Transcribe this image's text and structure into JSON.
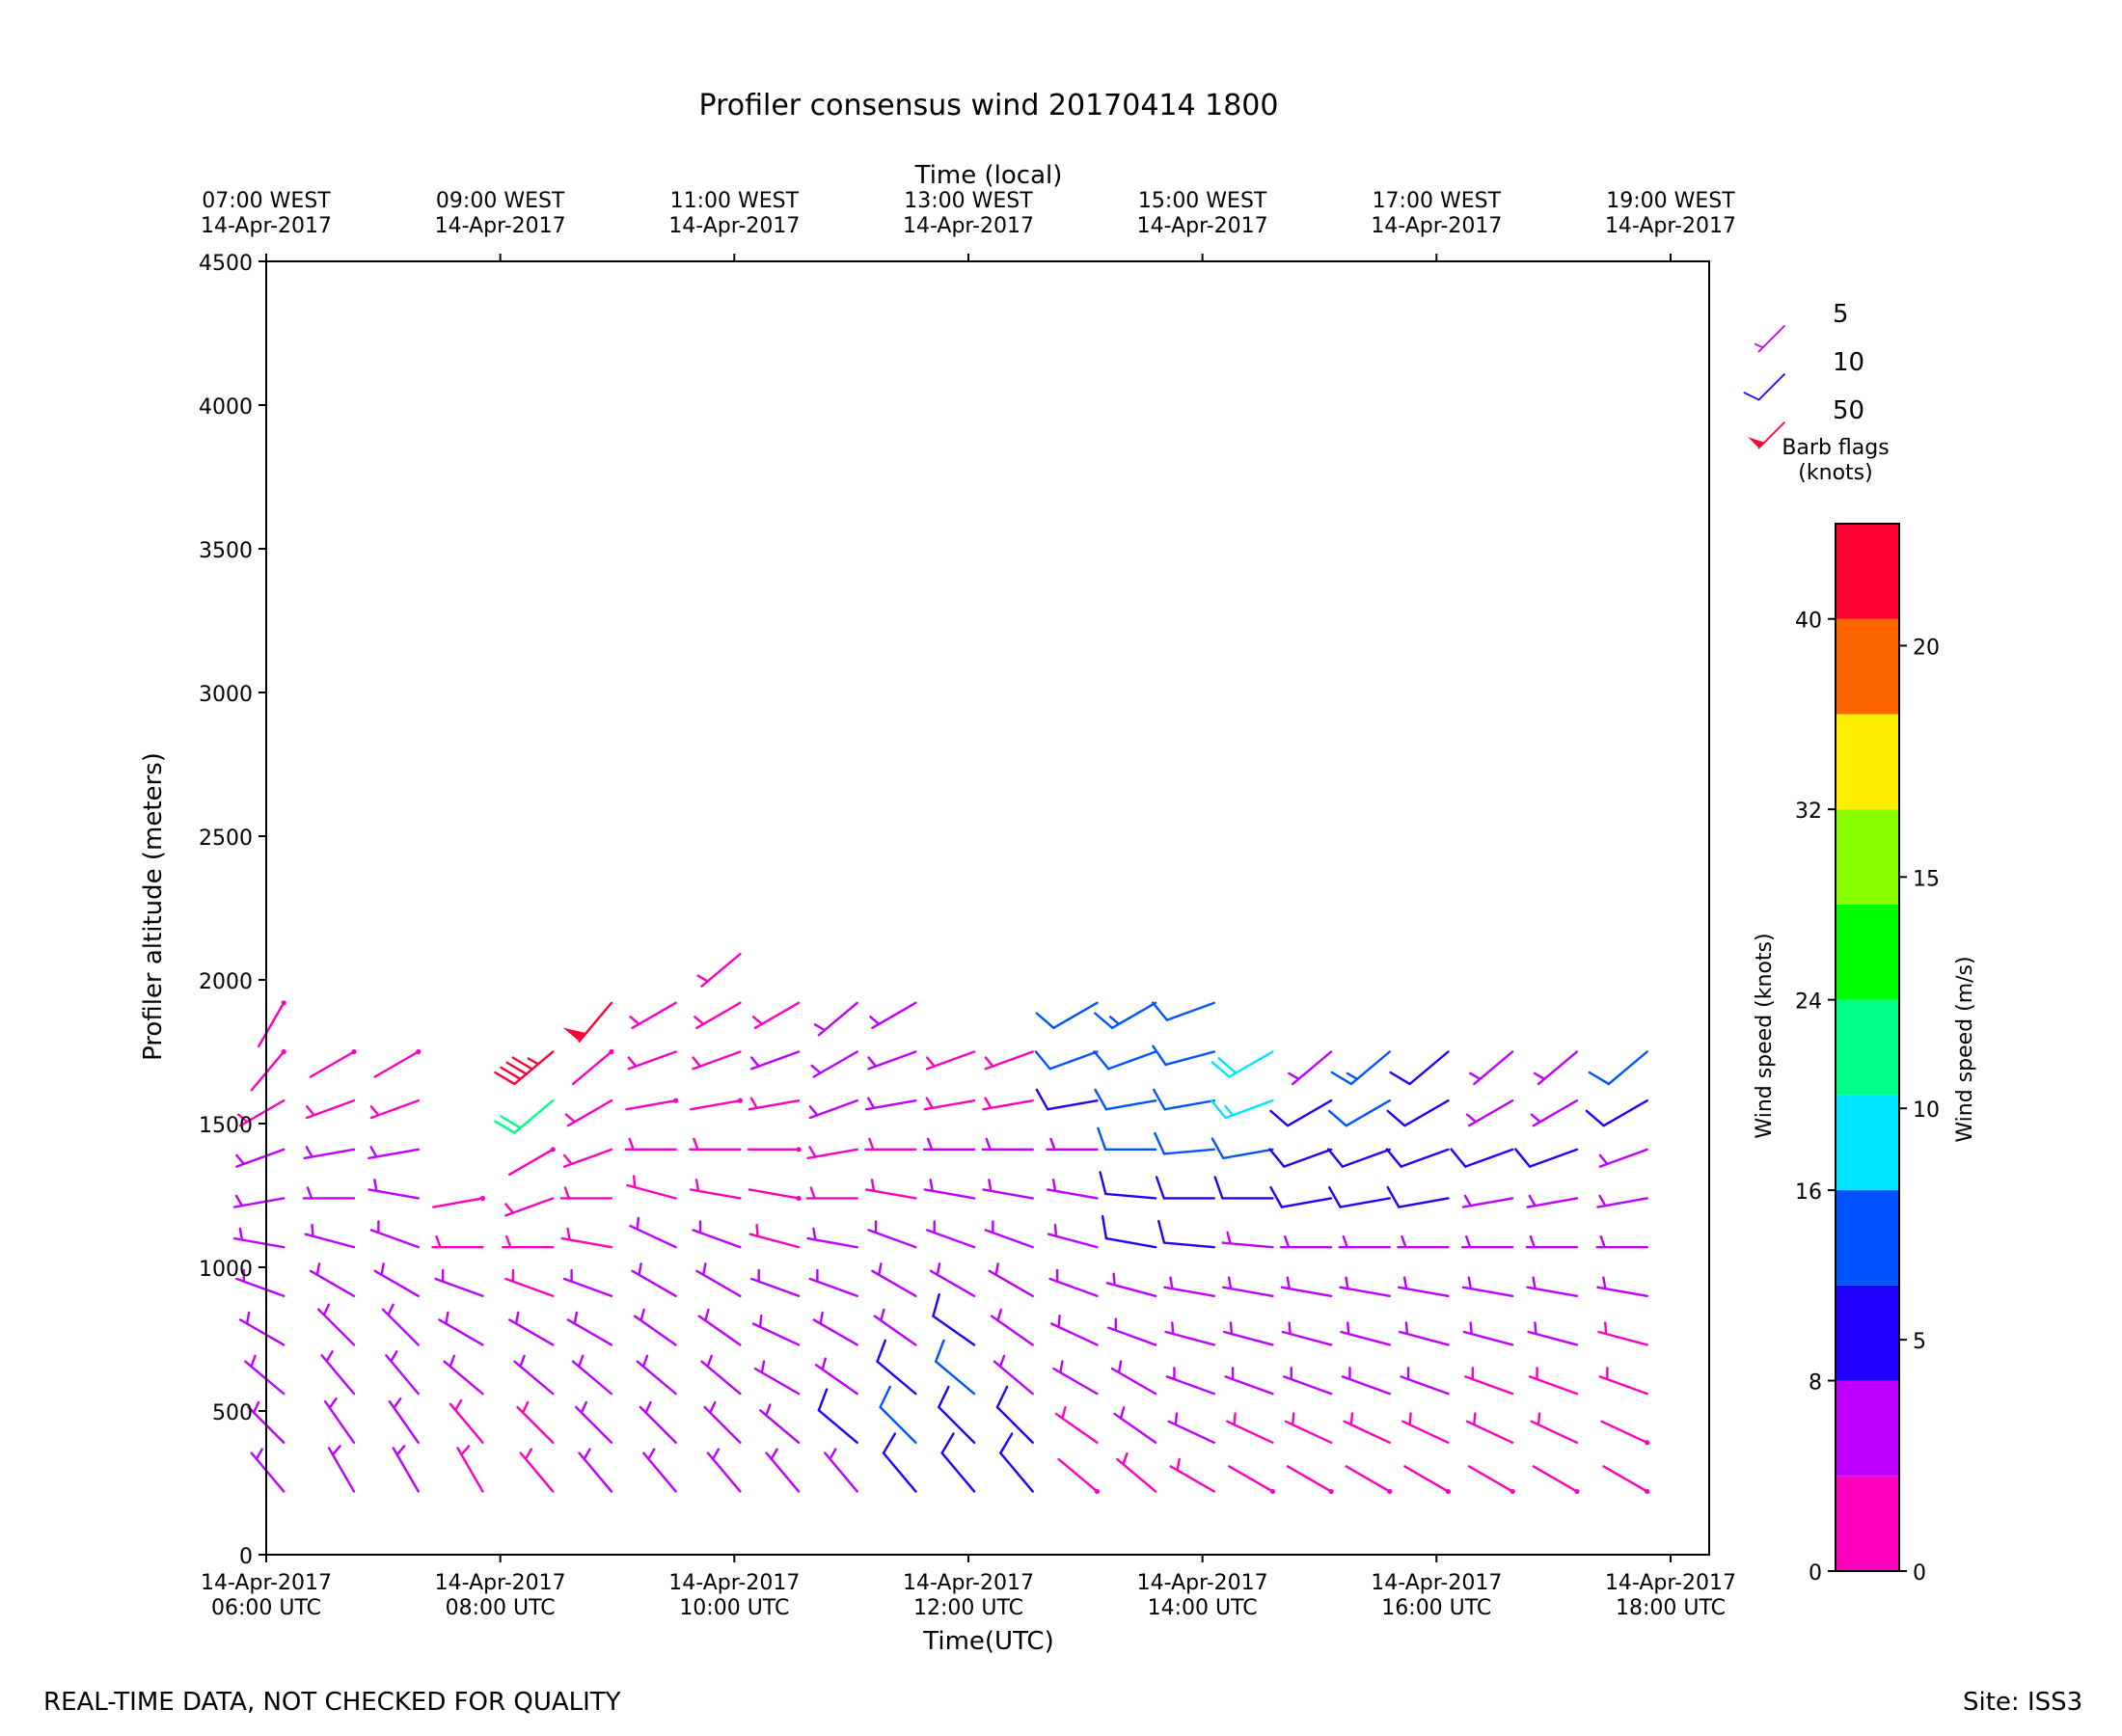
{
  "footer": {
    "disclaimer": "REAL-TIME DATA, NOT CHECKED FOR QUALITY",
    "site": "Site: ISS3"
  },
  "colors": {
    "speed_bins": [
      "#ff00bf",
      "#bf00ff",
      "#2200ff",
      "#0055ff",
      "#00e5ff",
      "#00ff88",
      "#00ff00",
      "#88ff00",
      "#ffee00",
      "#ff6600",
      "#ff0033"
    ]
  },
  "chart_data": {
    "type": "wind_barbs",
    "title": "Profiler consensus wind 20170414 1800",
    "xlabel": "Time(UTC)",
    "ylabel": "Profiler altitude (meters)",
    "top_xlabel": "Time (local)",
    "ylim": [
      0,
      4500
    ],
    "xlim_hours_utc": [
      6.0,
      18.33
    ],
    "y_ticks": [
      0,
      500,
      1000,
      1500,
      2000,
      2500,
      3000,
      3500,
      4000,
      4500
    ],
    "x_ticks_bottom": [
      {
        "hour": 6,
        "line1": "14-Apr-2017",
        "line2": "06:00 UTC"
      },
      {
        "hour": 8,
        "line1": "14-Apr-2017",
        "line2": "08:00 UTC"
      },
      {
        "hour": 10,
        "line1": "14-Apr-2017",
        "line2": "10:00 UTC"
      },
      {
        "hour": 12,
        "line1": "14-Apr-2017",
        "line2": "12:00 UTC"
      },
      {
        "hour": 14,
        "line1": "14-Apr-2017",
        "line2": "14:00 UTC"
      },
      {
        "hour": 16,
        "line1": "14-Apr-2017",
        "line2": "16:00 UTC"
      },
      {
        "hour": 18,
        "line1": "14-Apr-2017",
        "line2": "18:00 UTC"
      }
    ],
    "x_ticks_top": [
      {
        "hour": 6,
        "line1": "07:00 WEST",
        "line2": "14-Apr-2017"
      },
      {
        "hour": 8,
        "line1": "09:00 WEST",
        "line2": "14-Apr-2017"
      },
      {
        "hour": 10,
        "line1": "11:00 WEST",
        "line2": "14-Apr-2017"
      },
      {
        "hour": 12,
        "line1": "13:00 WEST",
        "line2": "14-Apr-2017"
      },
      {
        "hour": 14,
        "line1": "15:00 WEST",
        "line2": "14-Apr-2017"
      },
      {
        "hour": 16,
        "line1": "17:00 WEST",
        "line2": "14-Apr-2017"
      },
      {
        "hour": 18,
        "line1": "19:00 WEST",
        "line2": "14-Apr-2017"
      }
    ],
    "barb_legend": {
      "title_line1": "Barb flags",
      "title_line2": "(knots)",
      "items": [
        {
          "label": "5",
          "speed": 5,
          "color": "#bf00ff"
        },
        {
          "label": "10",
          "speed": 10,
          "color": "#2200ff"
        },
        {
          "label": "50",
          "speed": 50,
          "color": "#ff0033"
        }
      ]
    },
    "colorbar": {
      "label_left": "Wind speed (knots)",
      "label_right": "Wind speed (m/s)",
      "range_knots": [
        0,
        44
      ],
      "knots_ticks": [
        0,
        8,
        16,
        24,
        32,
        40
      ],
      "ms_ticks": [
        0,
        5,
        10,
        15,
        20
      ],
      "ms_to_knots": 1.94384
    },
    "profiles": [
      {
        "hour": 6.15,
        "dir": [
          320,
          315,
          310,
          300,
          290,
          280,
          260,
          250,
          240,
          220,
          210
        ],
        "spd": [
          4,
          4,
          5,
          6,
          6,
          5,
          4,
          4,
          3,
          2,
          2
        ]
      },
      {
        "hour": 6.75,
        "dir": [
          330,
          325,
          320,
          315,
          300,
          285,
          270,
          260,
          250,
          240
        ],
        "spd": [
          4,
          4,
          5,
          6,
          7,
          6,
          5,
          4,
          3,
          2
        ]
      },
      {
        "hour": 7.3,
        "dir": [
          330,
          325,
          320,
          315,
          300,
          290,
          280,
          260,
          250,
          240
        ],
        "spd": [
          4,
          4,
          5,
          6,
          7,
          6,
          5,
          4,
          3,
          2
        ]
      },
      {
        "hour": 7.85,
        "dir": [
          330,
          320,
          310,
          300,
          290,
          270,
          260
        ],
        "spd": [
          3,
          3,
          4,
          4,
          4,
          3,
          2
        ]
      },
      {
        "hour": 8.45,
        "dir": [
          320,
          315,
          310,
          300,
          290,
          270,
          250,
          240,
          230,
          230
        ],
        "spd": [
          3,
          3,
          4,
          4,
          3,
          3,
          3,
          2,
          20,
          45
        ]
      },
      {
        "hour": 8.95,
        "dir": [
          320,
          315,
          310,
          300,
          290,
          280,
          270,
          250,
          240,
          230,
          220
        ],
        "spd": [
          4,
          5,
          6,
          5,
          4,
          3,
          3,
          3,
          3,
          2,
          50
        ]
      },
      {
        "hour": 9.5,
        "dir": [
          320,
          315,
          310,
          305,
          300,
          295,
          285,
          270,
          260,
          250,
          240
        ],
        "spd": [
          4,
          5,
          6,
          6,
          5,
          4,
          3,
          3,
          2,
          3,
          3
        ]
      },
      {
        "hour": 10.05,
        "dir": [
          320,
          315,
          310,
          305,
          300,
          290,
          280,
          270,
          260,
          250,
          240,
          230
        ],
        "spd": [
          4,
          5,
          6,
          6,
          5,
          4,
          3,
          3,
          2,
          3,
          3,
          3
        ]
      },
      {
        "hour": 10.55,
        "dir": [
          320,
          310,
          300,
          295,
          290,
          285,
          280,
          270,
          260,
          250,
          240
        ],
        "spd": [
          5,
          6,
          6,
          5,
          4,
          3,
          2,
          2,
          3,
          4,
          3
        ]
      },
      {
        "hour": 11.05,
        "dir": [
          320,
          310,
          305,
          300,
          290,
          280,
          270,
          260,
          250,
          240,
          230
        ],
        "spd": [
          6,
          8,
          7,
          6,
          5,
          4,
          3,
          3,
          4,
          4,
          5
        ]
      },
      {
        "hour": 11.55,
        "dir": [
          320,
          315,
          310,
          305,
          300,
          290,
          280,
          270,
          260,
          250,
          240
        ],
        "spd": [
          8,
          12,
          10,
          7,
          6,
          4,
          3,
          3,
          4,
          4,
          5
        ]
      },
      {
        "hour": 12.05,
        "dir": [
          320,
          315,
          310,
          305,
          300,
          290,
          280,
          270,
          260,
          250
        ],
        "spd": [
          9,
          10,
          12,
          8,
          7,
          6,
          5,
          4,
          3,
          3
        ]
      },
      {
        "hour": 12.55,
        "dir": [
          320,
          315,
          310,
          305,
          300,
          290,
          280,
          270,
          260,
          250
        ],
        "spd": [
          8,
          9,
          7,
          7,
          6,
          5,
          6,
          4,
          3,
          3
        ]
      },
      {
        "hour": 13.1,
        "dir": [
          310,
          305,
          300,
          295,
          290,
          285,
          280,
          270,
          260,
          250,
          240
        ],
        "spd": [
          2,
          3,
          5,
          6,
          5,
          5,
          6,
          7,
          8,
          12,
          12
        ]
      },
      {
        "hour": 13.6,
        "dir": [
          310,
          305,
          300,
          290,
          285,
          280,
          275,
          270,
          260,
          250,
          240
        ],
        "spd": [
          3,
          4,
          5,
          6,
          7,
          8,
          10,
          12,
          12,
          12,
          15
        ]
      },
      {
        "hour": 14.1,
        "dir": [
          300,
          295,
          290,
          285,
          280,
          275,
          270,
          265,
          260,
          255,
          250
        ],
        "spd": [
          3,
          4,
          5,
          6,
          7,
          8,
          10,
          12,
          12,
          12,
          12
        ]
      },
      {
        "hour": 14.6,
        "dir": [
          300,
          295,
          290,
          285,
          280,
          275,
          270,
          260,
          250,
          240
        ],
        "spd": [
          2,
          3,
          4,
          5,
          6,
          7,
          9,
          12,
          16,
          18
        ]
      },
      {
        "hour": 15.1,
        "dir": [
          300,
          295,
          290,
          285,
          280,
          270,
          260,
          250,
          240,
          230
        ],
        "spd": [
          2,
          3,
          4,
          5,
          6,
          7,
          8,
          10,
          8,
          6
        ]
      },
      {
        "hour": 15.6,
        "dir": [
          300,
          295,
          290,
          285,
          280,
          270,
          260,
          250,
          240,
          230
        ],
        "spd": [
          2,
          3,
          4,
          5,
          6,
          7,
          8,
          10,
          12,
          13
        ]
      },
      {
        "hour": 16.1,
        "dir": [
          300,
          295,
          290,
          285,
          280,
          270,
          260,
          250,
          240,
          230
        ],
        "spd": [
          2,
          3,
          4,
          5,
          6,
          7,
          8,
          10,
          9,
          8
        ]
      },
      {
        "hour": 16.65,
        "dir": [
          300,
          295,
          290,
          285,
          280,
          270,
          260,
          250,
          240,
          230
        ],
        "spd": [
          2,
          3,
          3,
          4,
          5,
          6,
          7,
          8,
          6,
          5
        ]
      },
      {
        "hour": 17.2,
        "dir": [
          300,
          295,
          290,
          285,
          280,
          270,
          260,
          250,
          240,
          230
        ],
        "spd": [
          2,
          3,
          3,
          4,
          5,
          6,
          7,
          8,
          6,
          5
        ]
      },
      {
        "hour": 17.8,
        "dir": [
          300,
          295,
          290,
          285,
          280,
          270,
          260,
          250,
          240,
          230
        ],
        "spd": [
          2,
          2,
          3,
          3,
          4,
          4,
          5,
          6,
          8,
          12
        ]
      }
    ]
  }
}
